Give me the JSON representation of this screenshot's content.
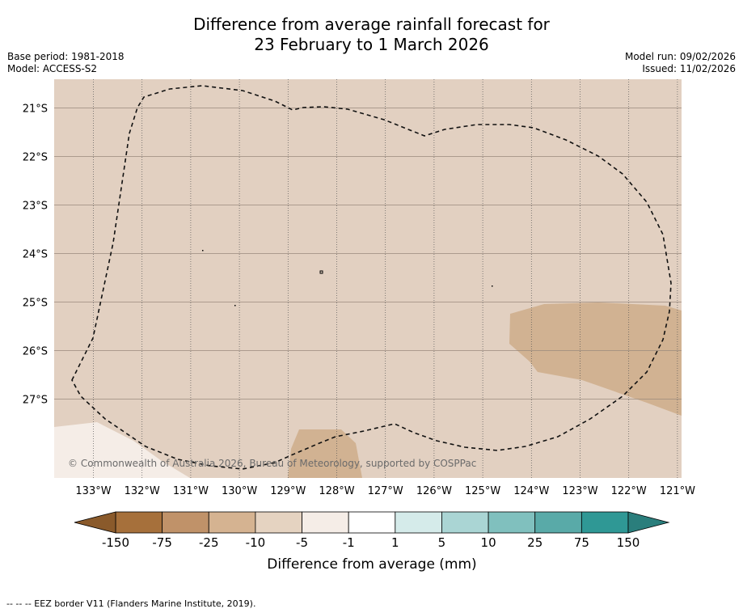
{
  "title": {
    "line1": "Difference from average rainfall forecast for",
    "line2": "23 February to 1 March 2026"
  },
  "meta_left": {
    "base_period": "Base period: 1981-2018",
    "model": "Model: ACCESS-S2"
  },
  "meta_right": {
    "model_run": "Model run: 09/02/2026",
    "issued": "Issued: 11/02/2026"
  },
  "map": {
    "lon_ticks": [
      "133°W",
      "132°W",
      "131°W",
      "130°W",
      "129°W",
      "128°W",
      "127°W",
      "126°W",
      "125°W",
      "124°W",
      "123°W",
      "122°W",
      "121°W"
    ],
    "lat_ticks": [
      "21°S",
      "22°S",
      "23°S",
      "24°S",
      "25°S",
      "26°S",
      "27°S"
    ],
    "copyright": "© Commonwealth of Australia 2026, Bureau of Meteorology, supported by COSPPac",
    "background_category": "-10 to -5",
    "patches": [
      {
        "name": "east-patch",
        "category": "-25 to -10"
      },
      {
        "name": "south-patch",
        "category": "-25 to -10"
      },
      {
        "name": "southwest-patch",
        "category": "-5 to -1"
      }
    ]
  },
  "colorbar": {
    "tick_labels": [
      "-150",
      "-75",
      "-25",
      "-10",
      "-5",
      "-1",
      "1",
      "5",
      "10",
      "25",
      "75",
      "150"
    ],
    "colors": [
      "#a6703b",
      "#c09269",
      "#d5b391",
      "#e5d3c1",
      "#f5ede7",
      "#ffffff",
      "#d5ebea",
      "#aad5d4",
      "#80c0be",
      "#59aaa8",
      "#2f9895"
    ],
    "extend_low_color": "#8a5a2b",
    "extend_high_color": "#2a7e7c",
    "label": "Difference from average (mm)"
  },
  "legend": {
    "eez_text": "--  --  -- EEZ border V11 (Flanders Marine Institute, 2019)."
  }
}
